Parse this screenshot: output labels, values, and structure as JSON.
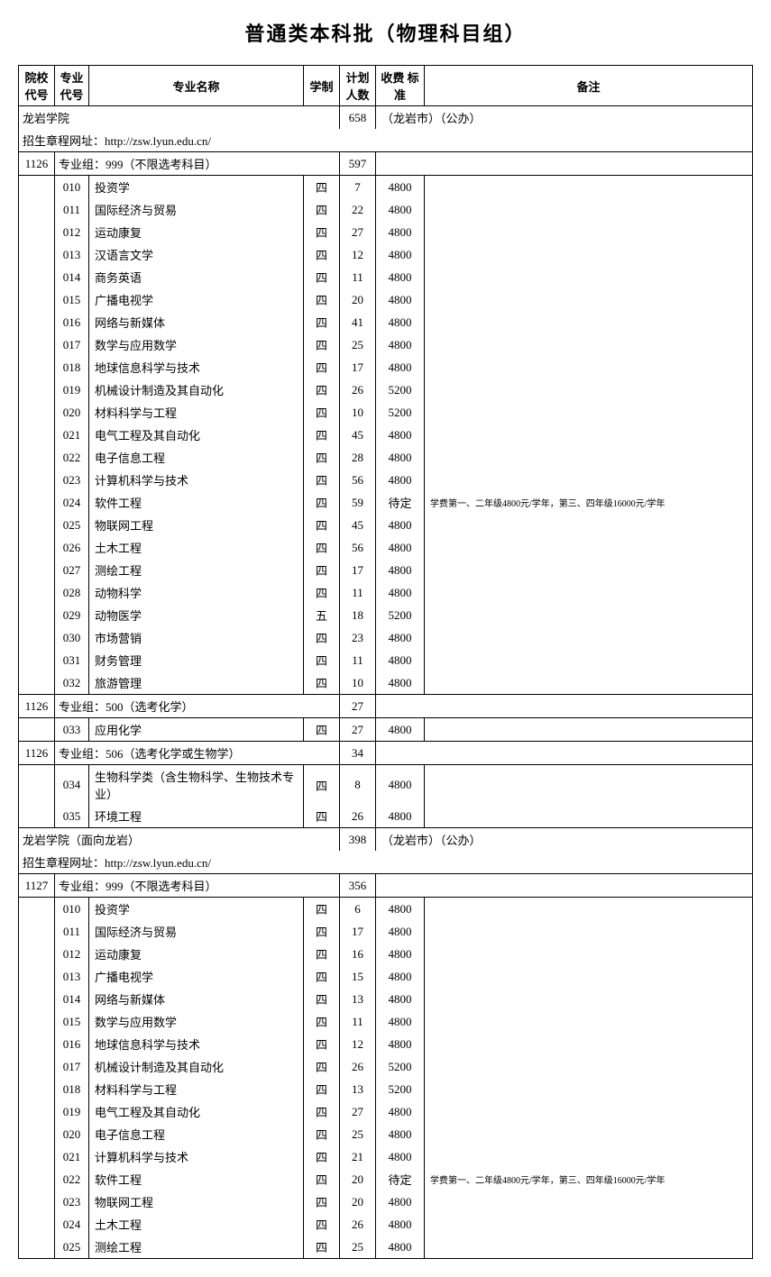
{
  "title": "普通类本科批（物理科目组）",
  "headers": {
    "school_code": "院校\n代号",
    "major_code": "专业\n代号",
    "major_name": "专业名称",
    "duration": "学制",
    "plan": "计划\n人数",
    "fee": "收费\n标准",
    "remark": "备注"
  },
  "schools": [
    {
      "name": "龙岩学院",
      "total_plan": "658",
      "location": "（龙岩市）（公办）",
      "url": "招生章程网址：http://zsw.lyun.edu.cn/",
      "school_code": "1126",
      "groups": [
        {
          "code": "1126",
          "group_name": "专业组：999（不限选考科目）",
          "group_plan": "597",
          "majors": [
            {
              "code": "010",
              "name": "投资学",
              "duration": "四",
              "plan": "7",
              "fee": "4800",
              "remark": ""
            },
            {
              "code": "011",
              "name": "国际经济与贸易",
              "duration": "四",
              "plan": "22",
              "fee": "4800",
              "remark": ""
            },
            {
              "code": "012",
              "name": "运动康复",
              "duration": "四",
              "plan": "27",
              "fee": "4800",
              "remark": ""
            },
            {
              "code": "013",
              "name": "汉语言文学",
              "duration": "四",
              "plan": "12",
              "fee": "4800",
              "remark": ""
            },
            {
              "code": "014",
              "name": "商务英语",
              "duration": "四",
              "plan": "11",
              "fee": "4800",
              "remark": ""
            },
            {
              "code": "015",
              "name": "广播电视学",
              "duration": "四",
              "plan": "20",
              "fee": "4800",
              "remark": ""
            },
            {
              "code": "016",
              "name": "网络与新媒体",
              "duration": "四",
              "plan": "41",
              "fee": "4800",
              "remark": ""
            },
            {
              "code": "017",
              "name": "数学与应用数学",
              "duration": "四",
              "plan": "25",
              "fee": "4800",
              "remark": ""
            },
            {
              "code": "018",
              "name": "地球信息科学与技术",
              "duration": "四",
              "plan": "17",
              "fee": "4800",
              "remark": ""
            },
            {
              "code": "019",
              "name": "机械设计制造及其自动化",
              "duration": "四",
              "plan": "26",
              "fee": "5200",
              "remark": ""
            },
            {
              "code": "020",
              "name": "材料科学与工程",
              "duration": "四",
              "plan": "10",
              "fee": "5200",
              "remark": ""
            },
            {
              "code": "021",
              "name": "电气工程及其自动化",
              "duration": "四",
              "plan": "45",
              "fee": "4800",
              "remark": ""
            },
            {
              "code": "022",
              "name": "电子信息工程",
              "duration": "四",
              "plan": "28",
              "fee": "4800",
              "remark": ""
            },
            {
              "code": "023",
              "name": "计算机科学与技术",
              "duration": "四",
              "plan": "56",
              "fee": "4800",
              "remark": ""
            },
            {
              "code": "024",
              "name": "软件工程",
              "duration": "四",
              "plan": "59",
              "fee": "待定",
              "remark": "学费第一、二年级4800元/学年，第三、四年级16000元/学年"
            },
            {
              "code": "025",
              "name": "物联网工程",
              "duration": "四",
              "plan": "45",
              "fee": "4800",
              "remark": ""
            },
            {
              "code": "026",
              "name": "土木工程",
              "duration": "四",
              "plan": "56",
              "fee": "4800",
              "remark": ""
            },
            {
              "code": "027",
              "name": "测绘工程",
              "duration": "四",
              "plan": "17",
              "fee": "4800",
              "remark": ""
            },
            {
              "code": "028",
              "name": "动物科学",
              "duration": "四",
              "plan": "11",
              "fee": "4800",
              "remark": ""
            },
            {
              "code": "029",
              "name": "动物医学",
              "duration": "五",
              "plan": "18",
              "fee": "5200",
              "remark": ""
            },
            {
              "code": "030",
              "name": "市场营销",
              "duration": "四",
              "plan": "23",
              "fee": "4800",
              "remark": ""
            },
            {
              "code": "031",
              "name": "财务管理",
              "duration": "四",
              "plan": "11",
              "fee": "4800",
              "remark": ""
            },
            {
              "code": "032",
              "name": "旅游管理",
              "duration": "四",
              "plan": "10",
              "fee": "4800",
              "remark": ""
            }
          ]
        },
        {
          "code": "1126",
          "group_name": "专业组：500（选考化学）",
          "group_plan": "27",
          "majors": [
            {
              "code": "033",
              "name": "应用化学",
              "duration": "四",
              "plan": "27",
              "fee": "4800",
              "remark": ""
            }
          ]
        },
        {
          "code": "1126",
          "group_name": "专业组：506（选考化学或生物学）",
          "group_plan": "34",
          "majors": [
            {
              "code": "034",
              "name": "生物科学类（含生物科学、生物技术专业）",
              "duration": "四",
              "plan": "8",
              "fee": "4800",
              "remark": ""
            },
            {
              "code": "035",
              "name": "环境工程",
              "duration": "四",
              "plan": "26",
              "fee": "4800",
              "remark": ""
            }
          ]
        }
      ]
    },
    {
      "name": "龙岩学院（面向龙岩）",
      "total_plan": "398",
      "location": "（龙岩市）（公办）",
      "url": "招生章程网址：http://zsw.lyun.edu.cn/",
      "school_code": "1127",
      "groups": [
        {
          "code": "1127",
          "group_name": "专业组：999（不限选考科目）",
          "group_plan": "356",
          "majors": [
            {
              "code": "010",
              "name": "投资学",
              "duration": "四",
              "plan": "6",
              "fee": "4800",
              "remark": ""
            },
            {
              "code": "011",
              "name": "国际经济与贸易",
              "duration": "四",
              "plan": "17",
              "fee": "4800",
              "remark": ""
            },
            {
              "code": "012",
              "name": "运动康复",
              "duration": "四",
              "plan": "16",
              "fee": "4800",
              "remark": ""
            },
            {
              "code": "013",
              "name": "广播电视学",
              "duration": "四",
              "plan": "15",
              "fee": "4800",
              "remark": ""
            },
            {
              "code": "014",
              "name": "网络与新媒体",
              "duration": "四",
              "plan": "13",
              "fee": "4800",
              "remark": ""
            },
            {
              "code": "015",
              "name": "数学与应用数学",
              "duration": "四",
              "plan": "11",
              "fee": "4800",
              "remark": ""
            },
            {
              "code": "016",
              "name": "地球信息科学与技术",
              "duration": "四",
              "plan": "12",
              "fee": "4800",
              "remark": ""
            },
            {
              "code": "017",
              "name": "机械设计制造及其自动化",
              "duration": "四",
              "plan": "26",
              "fee": "5200",
              "remark": ""
            },
            {
              "code": "018",
              "name": "材料科学与工程",
              "duration": "四",
              "plan": "13",
              "fee": "5200",
              "remark": ""
            },
            {
              "code": "019",
              "name": "电气工程及其自动化",
              "duration": "四",
              "plan": "27",
              "fee": "4800",
              "remark": ""
            },
            {
              "code": "020",
              "name": "电子信息工程",
              "duration": "四",
              "plan": "25",
              "fee": "4800",
              "remark": ""
            },
            {
              "code": "021",
              "name": "计算机科学与技术",
              "duration": "四",
              "plan": "21",
              "fee": "4800",
              "remark": ""
            },
            {
              "code": "022",
              "name": "软件工程",
              "duration": "四",
              "plan": "20",
              "fee": "待定",
              "remark": "学费第一、二年级4800元/学年，第三、四年级16000元/学年"
            },
            {
              "code": "023",
              "name": "物联网工程",
              "duration": "四",
              "plan": "20",
              "fee": "4800",
              "remark": ""
            },
            {
              "code": "024",
              "name": "土木工程",
              "duration": "四",
              "plan": "26",
              "fee": "4800",
              "remark": ""
            },
            {
              "code": "025",
              "name": "测绘工程",
              "duration": "四",
              "plan": "25",
              "fee": "4800",
              "remark": ""
            }
          ]
        }
      ]
    }
  ]
}
